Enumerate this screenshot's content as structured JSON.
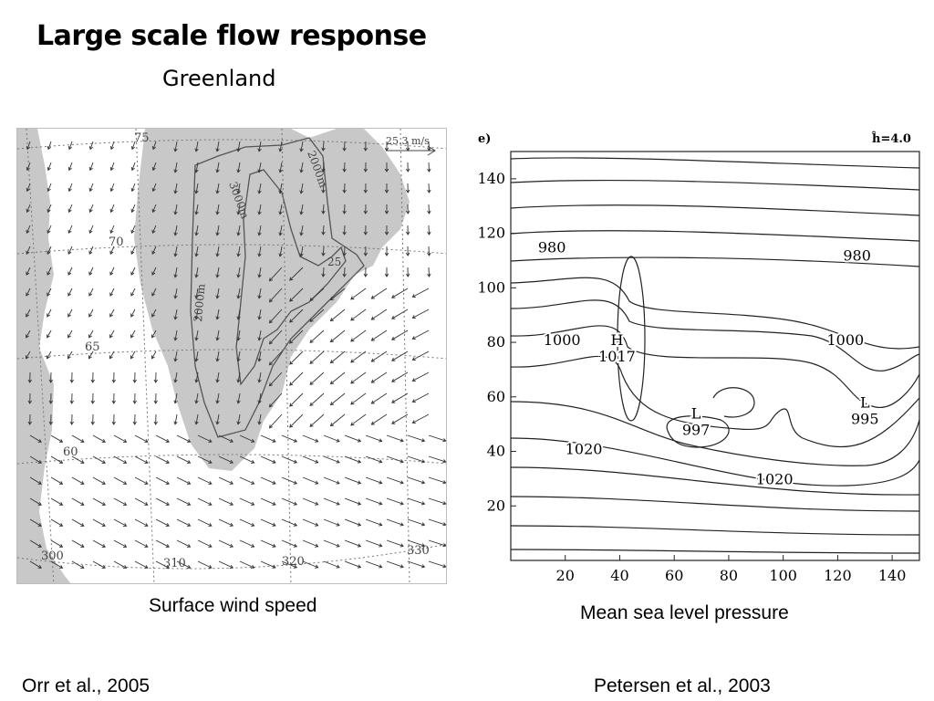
{
  "header": {
    "title": "Large scale flow response",
    "subtitle": "Greenland"
  },
  "left_figure": {
    "caption": "Surface wind speed",
    "reference": "Orr et al., 2005",
    "scale_label": "25.3 m/s",
    "latitude_labels": [
      "75",
      "70",
      "65",
      "60"
    ],
    "longitude_labels": [
      "300",
      "310",
      "320",
      "330"
    ],
    "contour_labels": [
      "3000m",
      "2000m",
      "2000m",
      "25"
    ],
    "land_color": "#c8c8c8"
  },
  "right_figure": {
    "caption": "Mean sea level pressure",
    "reference": "Petersen et al., 2003",
    "panel_label": "e)",
    "parameter_label": "ĥ=4.0"
  },
  "chart_data": {
    "type": "contour",
    "x_ticks": [
      20,
      40,
      60,
      80,
      100,
      120,
      140
    ],
    "y_ticks": [
      20,
      40,
      60,
      80,
      100,
      120,
      140
    ],
    "xlim": [
      0,
      150
    ],
    "ylim": [
      0,
      150
    ],
    "contour_labels": [
      {
        "text": "980",
        "x": 10,
        "y": 113
      },
      {
        "text": "980",
        "x": 122,
        "y": 110
      },
      {
        "text": "1000",
        "x": 12,
        "y": 79
      },
      {
        "text": "1000",
        "x": 116,
        "y": 79
      },
      {
        "text": "1020",
        "x": 20,
        "y": 39
      },
      {
        "text": "1020",
        "x": 90,
        "y": 28
      }
    ],
    "pressure_centers": [
      {
        "symbol": "H",
        "value": "1017",
        "x": 39,
        "y": 73
      },
      {
        "symbol": "L",
        "value": "997",
        "x": 68,
        "y": 46
      },
      {
        "symbol": "L",
        "value": "995",
        "x": 130,
        "y": 50
      }
    ]
  }
}
